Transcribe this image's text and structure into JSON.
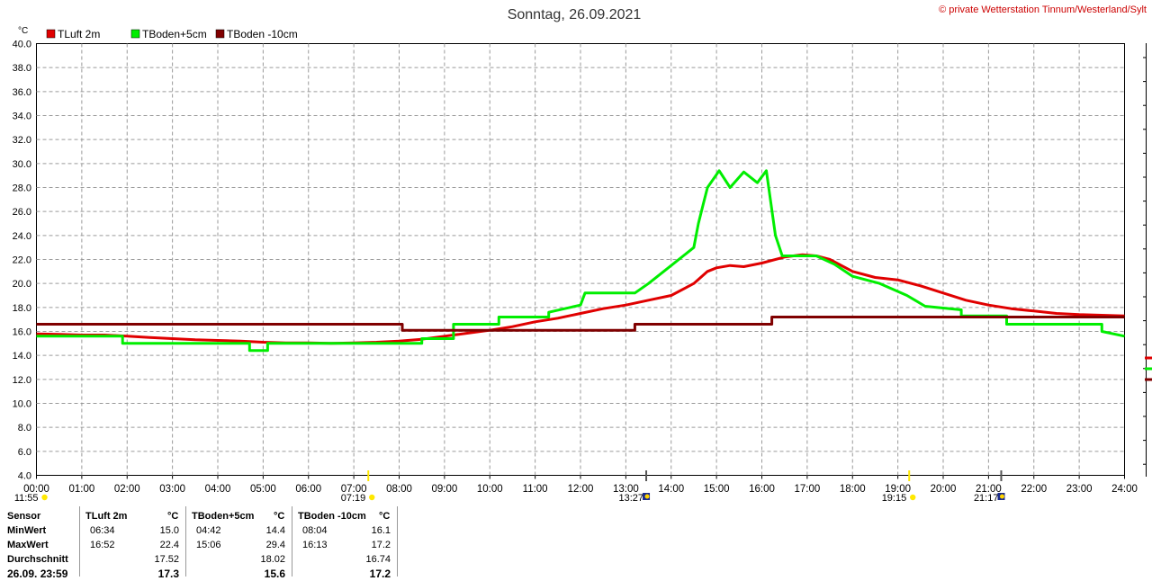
{
  "chart_data": {
    "type": "line",
    "title": "Sonntag, 26.09.2021",
    "ylabel": "°C",
    "ylim": [
      4.0,
      40.0
    ],
    "yticks": [
      "4.0",
      "6.0",
      "8.0",
      "10.0",
      "12.0",
      "14.0",
      "16.0",
      "18.0",
      "20.0",
      "22.0",
      "24.0",
      "26.0",
      "28.0",
      "30.0",
      "32.0",
      "34.0",
      "36.0",
      "38.0",
      "40.0"
    ],
    "xlim": [
      0,
      24
    ],
    "xticks": [
      "00:00",
      "01:00",
      "02:00",
      "03:00",
      "04:00",
      "05:00",
      "06:00",
      "07:00",
      "08:00",
      "09:00",
      "10:00",
      "11:00",
      "12:00",
      "13:00",
      "14:00",
      "15:00",
      "16:00",
      "17:00",
      "18:00",
      "19:00",
      "20:00",
      "21:00",
      "22:00",
      "23:00",
      "24:00"
    ],
    "grid": true,
    "legend_position": "top-left",
    "series": [
      {
        "name": "TLuft 2m",
        "color": "#e00000",
        "points": [
          [
            0,
            15.8
          ],
          [
            0.5,
            15.75
          ],
          [
            1,
            15.7
          ],
          [
            1.5,
            15.7
          ],
          [
            2,
            15.6
          ],
          [
            2.5,
            15.5
          ],
          [
            3,
            15.4
          ],
          [
            3.5,
            15.3
          ],
          [
            4,
            15.25
          ],
          [
            4.5,
            15.2
          ],
          [
            5,
            15.1
          ],
          [
            5.5,
            15.05
          ],
          [
            6,
            15.05
          ],
          [
            6.5,
            15.0
          ],
          [
            7,
            15.05
          ],
          [
            7.5,
            15.1
          ],
          [
            8,
            15.2
          ],
          [
            8.5,
            15.35
          ],
          [
            9,
            15.6
          ],
          [
            9.5,
            15.85
          ],
          [
            10,
            16.1
          ],
          [
            10.5,
            16.4
          ],
          [
            11,
            16.8
          ],
          [
            11.5,
            17.1
          ],
          [
            12,
            17.5
          ],
          [
            12.5,
            17.9
          ],
          [
            13,
            18.2
          ],
          [
            13.5,
            18.6
          ],
          [
            14,
            19.0
          ],
          [
            14.5,
            20.0
          ],
          [
            14.8,
            21.0
          ],
          [
            15,
            21.3
          ],
          [
            15.3,
            21.5
          ],
          [
            15.6,
            21.4
          ],
          [
            16,
            21.7
          ],
          [
            16.5,
            22.2
          ],
          [
            16.9,
            22.4
          ],
          [
            17.2,
            22.3
          ],
          [
            17.5,
            22.0
          ],
          [
            18,
            21.0
          ],
          [
            18.5,
            20.5
          ],
          [
            19,
            20.3
          ],
          [
            19.5,
            19.8
          ],
          [
            20,
            19.2
          ],
          [
            20.5,
            18.6
          ],
          [
            21,
            18.2
          ],
          [
            21.5,
            17.9
          ],
          [
            22,
            17.7
          ],
          [
            22.5,
            17.5
          ],
          [
            23,
            17.4
          ],
          [
            23.5,
            17.35
          ],
          [
            24,
            17.3
          ]
        ]
      },
      {
        "name": "TBoden+5cm",
        "color": "#00ee00",
        "points": [
          [
            0,
            15.6
          ],
          [
            1.9,
            15.6
          ],
          [
            1.9,
            15.0
          ],
          [
            4.7,
            15.0
          ],
          [
            4.7,
            14.4
          ],
          [
            5.1,
            14.4
          ],
          [
            5.1,
            15.0
          ],
          [
            8.5,
            15.0
          ],
          [
            8.5,
            15.4
          ],
          [
            9.2,
            15.4
          ],
          [
            9.2,
            16.6
          ],
          [
            10.2,
            16.6
          ],
          [
            10.2,
            17.2
          ],
          [
            11.3,
            17.2
          ],
          [
            11.3,
            17.6
          ],
          [
            12,
            18.2
          ],
          [
            12.1,
            19.2
          ],
          [
            13.2,
            19.2
          ],
          [
            13.5,
            20.0
          ],
          [
            14,
            21.5
          ],
          [
            14.5,
            23.0
          ],
          [
            14.6,
            25.0
          ],
          [
            14.7,
            26.5
          ],
          [
            14.8,
            28.0
          ],
          [
            15.06,
            29.4
          ],
          [
            15.3,
            28.0
          ],
          [
            15.6,
            29.3
          ],
          [
            15.9,
            28.4
          ],
          [
            16.1,
            29.4
          ],
          [
            16.3,
            24.0
          ],
          [
            16.45,
            22.3
          ],
          [
            17.2,
            22.3
          ],
          [
            17.6,
            21.6
          ],
          [
            18,
            20.6
          ],
          [
            18.6,
            20.0
          ],
          [
            19.2,
            19.0
          ],
          [
            19.6,
            18.1
          ],
          [
            20.4,
            17.8
          ],
          [
            20.4,
            17.3
          ],
          [
            21.4,
            17.3
          ],
          [
            21.4,
            16.6
          ],
          [
            23.5,
            16.6
          ],
          [
            23.5,
            16.0
          ],
          [
            24,
            15.6
          ]
        ]
      },
      {
        "name": "TBoden -10cm",
        "color": "#800000",
        "points": [
          [
            0,
            16.6
          ],
          [
            8.07,
            16.6
          ],
          [
            8.07,
            16.1
          ],
          [
            13.2,
            16.1
          ],
          [
            13.2,
            16.6
          ],
          [
            16.22,
            16.6
          ],
          [
            16.22,
            17.2
          ],
          [
            24,
            17.2
          ]
        ]
      }
    ],
    "markers": [
      {
        "x": 0.1,
        "label": "11:55",
        "icon": "sun-icon"
      },
      {
        "x": 7.32,
        "label": "07:19",
        "icon": "sunrise-icon"
      },
      {
        "x": 13.45,
        "label": "13:27",
        "icon": "moon-icon"
      },
      {
        "x": 19.25,
        "label": "19:15",
        "icon": "sunset-icon"
      },
      {
        "x": 21.28,
        "label": "21:17",
        "icon": "moon-icon"
      }
    ]
  },
  "copyright": "© private Wetterstation Tinnum/Westerland/Sylt",
  "stats": {
    "headers": {
      "sensor": "Sensor",
      "s1": "TLuft 2m",
      "s2": "TBoden+5cm",
      "s3": "TBoden -10cm",
      "unit": "°C"
    },
    "min": {
      "label": "MinWert",
      "t1": "06:34",
      "v1": "15.0",
      "t2": "04:42",
      "v2": "14.4",
      "t3": "08:04",
      "v3": "16.1"
    },
    "max": {
      "label": "MaxWert",
      "t1": "16:52",
      "v1": "22.4",
      "t2": "15:06",
      "v2": "29.4",
      "t3": "16:13",
      "v3": "17.2"
    },
    "avg": {
      "label": "Durchschnitt",
      "v1": "17.52",
      "v2": "18.02",
      "v3": "16.74"
    },
    "cur": {
      "label": "26.09. 23:59",
      "v1": "17.3",
      "v2": "15.6",
      "v3": "17.2"
    }
  }
}
